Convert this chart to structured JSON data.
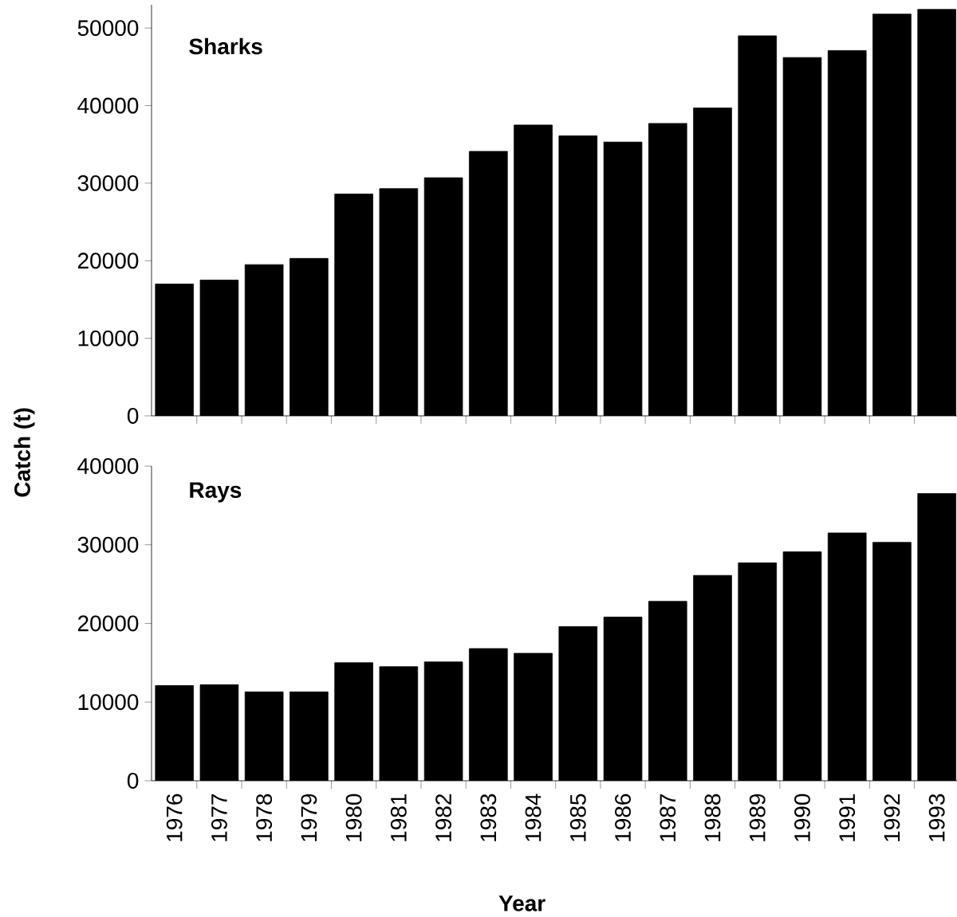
{
  "chart_data": [
    {
      "type": "bar",
      "title": "Sharks",
      "ylabel": "Catch (t)",
      "tick_labels": "y",
      "color": "#000000",
      "categories": [
        "1976",
        "1977",
        "1978",
        "1979",
        "1980",
        "1981",
        "1982",
        "1983",
        "1984",
        "1985",
        "1986",
        "1987",
        "1988",
        "1989",
        "1990",
        "1991",
        "1992",
        "1993"
      ],
      "values": [
        17000,
        17500,
        19500,
        20300,
        28600,
        29300,
        30700,
        34100,
        37500,
        36100,
        35300,
        37700,
        39700,
        49000,
        46200,
        47100,
        51800,
        52400
      ],
      "ylim": [
        0,
        53000
      ],
      "yticks": [
        0,
        10000,
        20000,
        30000,
        40000,
        50000
      ]
    },
    {
      "type": "bar",
      "title": "Rays",
      "xlabel": "Year",
      "color": "#000000",
      "categories": [
        "1976",
        "1977",
        "1978",
        "1979",
        "1980",
        "1981",
        "1982",
        "1983",
        "1984",
        "1985",
        "1986",
        "1987",
        "1988",
        "1989",
        "1990",
        "1991",
        "1992",
        "1993"
      ],
      "values": [
        12100,
        12200,
        11300,
        11300,
        15000,
        14500,
        15100,
        16800,
        16200,
        19600,
        20800,
        22800,
        26100,
        27700,
        29100,
        31500,
        30300,
        36500
      ],
      "ylim": [
        0,
        40000
      ],
      "yticks": [
        0,
        10000,
        20000,
        30000,
        40000
      ]
    }
  ]
}
